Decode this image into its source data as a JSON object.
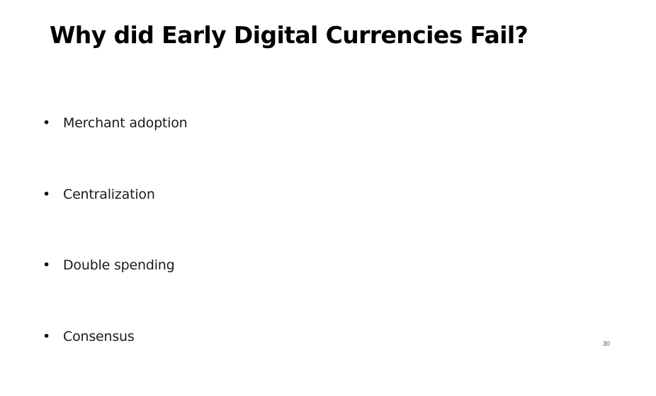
{
  "slide": {
    "title": "Why did Early Digital Currencies Fail?",
    "bullet_glyph": "•",
    "bullets": [
      "Merchant adoption",
      "Centralization",
      "Double spending",
      "Consensus"
    ],
    "page_number": "30"
  }
}
